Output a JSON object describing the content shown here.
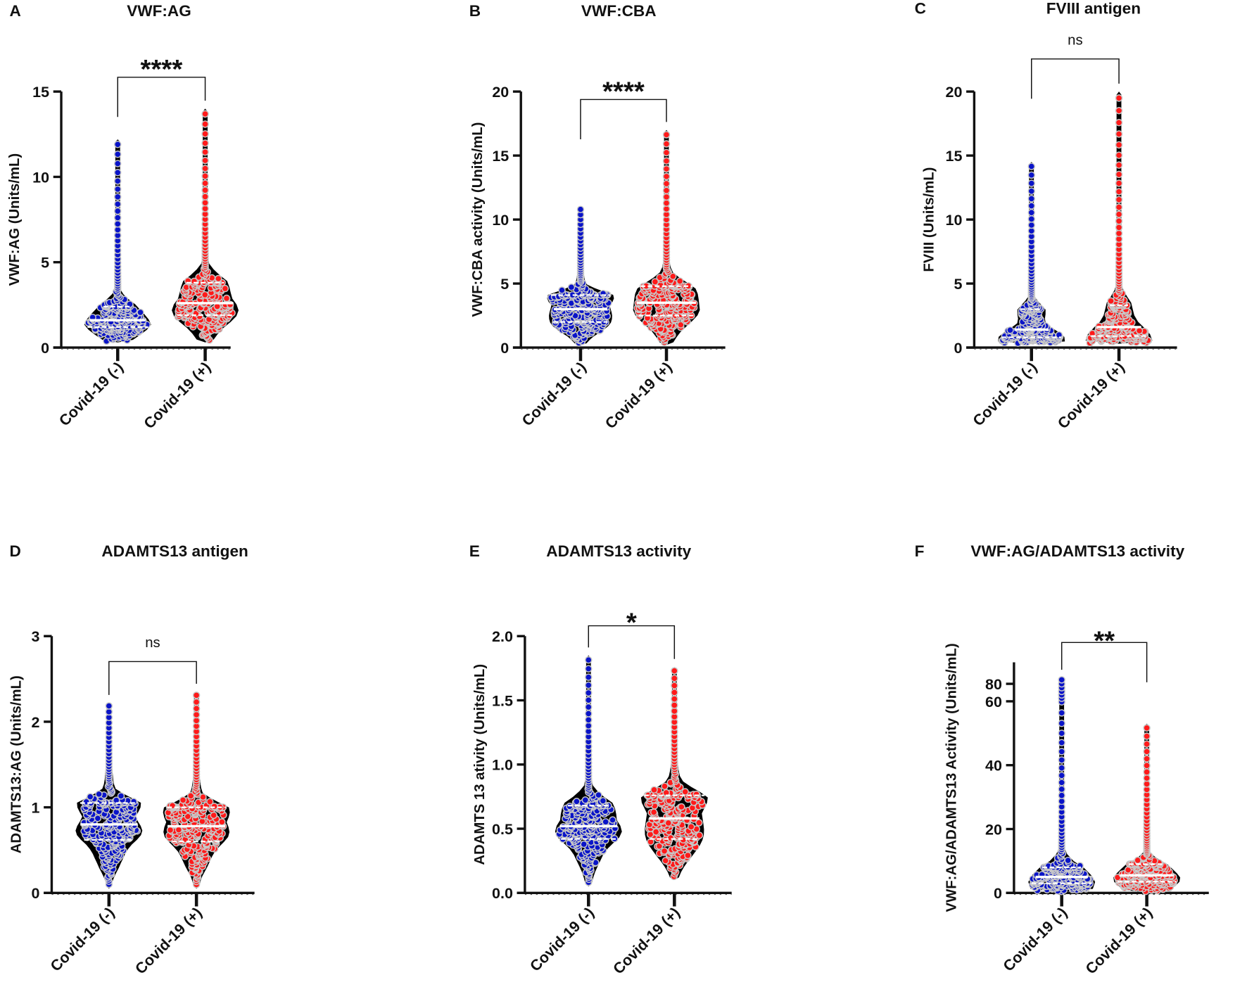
{
  "colors": {
    "negative": "#0a14c8",
    "positive": "#ff1a1a",
    "violin": "#000000",
    "dot_edge": "#c8c8c8"
  },
  "chart_data": [
    {
      "type": "violin",
      "panel": "A",
      "title": "VWF:AG",
      "ylabel": "VWF:AG (Units/mL)",
      "categories": [
        "Covid-19 (-)",
        "Covid-19 (+)"
      ],
      "yticks": [
        0,
        5,
        10,
        15
      ],
      "ylim": [
        0,
        15
      ],
      "significance": "****",
      "groups": [
        {
          "min": 0.3,
          "q1": 1.2,
          "median": 1.6,
          "q3": 2.4,
          "max": 12.2
        },
        {
          "min": 0.3,
          "q1": 1.9,
          "median": 2.6,
          "q3": 3.8,
          "max": 14
        }
      ]
    },
    {
      "type": "violin",
      "panel": "B",
      "title": "VWF:CBA",
      "ylabel": "VWF:CBA activity (Units/mL)",
      "categories": [
        "Covid-19 (-)",
        "Covid-19 (+)"
      ],
      "yticks": [
        0,
        5,
        10,
        15,
        20
      ],
      "ylim": [
        0,
        20
      ],
      "significance": "****",
      "groups": [
        {
          "min": 0.2,
          "q1": 2.0,
          "median": 3.0,
          "q3": 4.1,
          "max": 11
        },
        {
          "min": 0.2,
          "q1": 2.5,
          "median": 3.5,
          "q3": 4.8,
          "max": 17
        }
      ]
    },
    {
      "type": "violin",
      "panel": "C",
      "title": "FVIII antigen",
      "ylabel": "FVIII (Units/mL)",
      "categories": [
        "Covid-19 (-)",
        "Covid-19 (+)"
      ],
      "yticks": [
        0,
        5,
        10,
        15,
        20
      ],
      "ylim": [
        0,
        20
      ],
      "significance": "ns",
      "groups": [
        {
          "min": 0.3,
          "q1": 0.8,
          "median": 1.4,
          "q3": 3.0,
          "max": 14.5
        },
        {
          "min": 0.3,
          "q1": 0.9,
          "median": 1.6,
          "q3": 3.3,
          "max": 20
        }
      ]
    },
    {
      "type": "violin",
      "panel": "D",
      "title": "ADAMTS13 antigen",
      "ylabel": "ADAMTS13:AG (Units/mL)",
      "categories": [
        "Covid-19 (-)",
        "Covid-19 (+)"
      ],
      "yticks": [
        0,
        1,
        2,
        3
      ],
      "ylim": [
        0,
        3
      ],
      "significance": "ns",
      "groups": [
        {
          "min": 0.05,
          "q1": 0.62,
          "median": 0.8,
          "q3": 1.05,
          "max": 2.22
        },
        {
          "min": 0.05,
          "q1": 0.6,
          "median": 0.78,
          "q3": 1.0,
          "max": 2.35
        }
      ]
    },
    {
      "type": "violin",
      "panel": "E",
      "title": "ADAMTS13 activity",
      "ylabel": "ADAMTS 13 ativity (Units/mL)",
      "categories": [
        "Covid-19 (-)",
        "Covid-19 (+)"
      ],
      "yticks": [
        "0.0",
        "0.5",
        "1.0",
        "1.5",
        "2.0"
      ],
      "ylim": [
        0,
        2
      ],
      "significance": "*",
      "groups": [
        {
          "min": 0.05,
          "q1": 0.42,
          "median": 0.52,
          "q3": 0.68,
          "max": 1.85
        },
        {
          "min": 0.1,
          "q1": 0.42,
          "median": 0.58,
          "q3": 0.76,
          "max": 1.76
        }
      ]
    },
    {
      "type": "violin",
      "panel": "F",
      "title": "VWF:AG/ADAMTS13 activity",
      "ylabel": "VWF:AG/ADAMTS13 Activity  (Units/mL)",
      "categories": [
        "Covid-19 (-)",
        "Covid-19 (+)"
      ],
      "yticks": [
        0,
        20,
        40,
        60,
        80
      ],
      "ylim": [
        0,
        90
      ],
      "axis_break": true,
      "significance": "**",
      "groups": [
        {
          "min": 0.2,
          "q1": 3,
          "median": 5,
          "q3": 8,
          "max": 87
        },
        {
          "min": 0.2,
          "q1": 3.5,
          "median": 5.5,
          "q3": 9,
          "max": 53
        }
      ]
    }
  ]
}
